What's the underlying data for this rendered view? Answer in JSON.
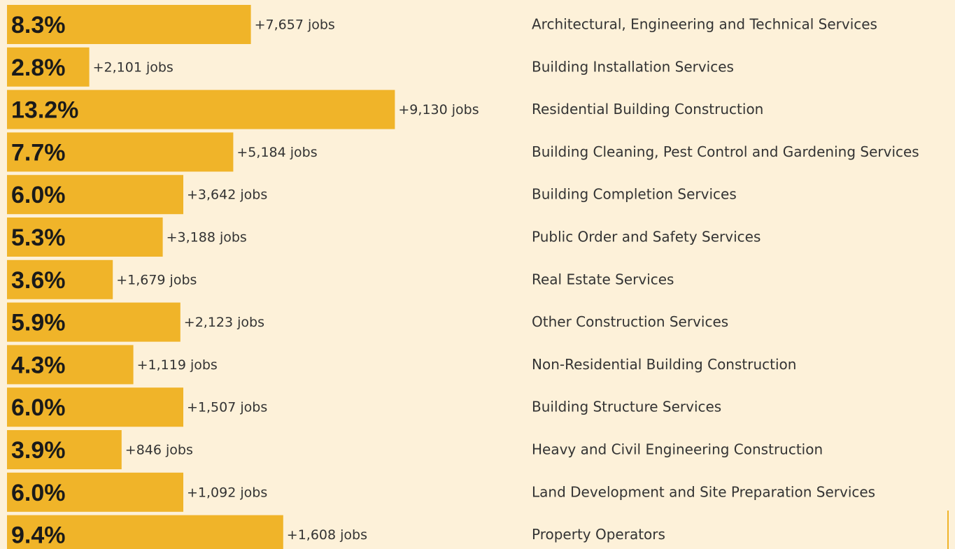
{
  "chart_data": {
    "type": "bar",
    "orientation": "horizontal",
    "color": "#f0b429",
    "categories": [
      "Architectural, Engineering and Technical Services",
      "Building Installation Services",
      "Residential Building Construction",
      "Building Cleaning, Pest Control and Gardening Services",
      "Building Completion Services",
      "Public Order and Safety Services",
      "Real Estate Services",
      "Other Construction Services",
      "Non-Residential Building Construction",
      "Building Structure Services",
      "Heavy and Civil Engineering Construction",
      "Land Development and Site Preparation Services",
      "Property Operators"
    ],
    "values": [
      8.3,
      2.8,
      13.2,
      7.7,
      6.0,
      5.3,
      3.6,
      5.9,
      4.3,
      6.0,
      3.9,
      6.0,
      9.4
    ],
    "value_labels": [
      "8.3%",
      "2.8%",
      "13.2%",
      "7.7%",
      "6.0%",
      "5.3%",
      "3.6%",
      "5.9%",
      "4.3%",
      "6.0%",
      "3.9%",
      "6.0%",
      "9.4%"
    ],
    "job_labels": [
      "+7,657 jobs",
      "+2,101 jobs",
      "+9,130 jobs",
      "+5,184 jobs",
      "+3,642 jobs",
      "+3,188 jobs",
      "+1,679 jobs",
      "+2,123 jobs",
      "+1,119 jobs",
      "+1,507 jobs",
      "+846 jobs",
      "+1,092 jobs",
      "+1,608 jobs"
    ],
    "xlim": [
      0,
      30
    ]
  }
}
